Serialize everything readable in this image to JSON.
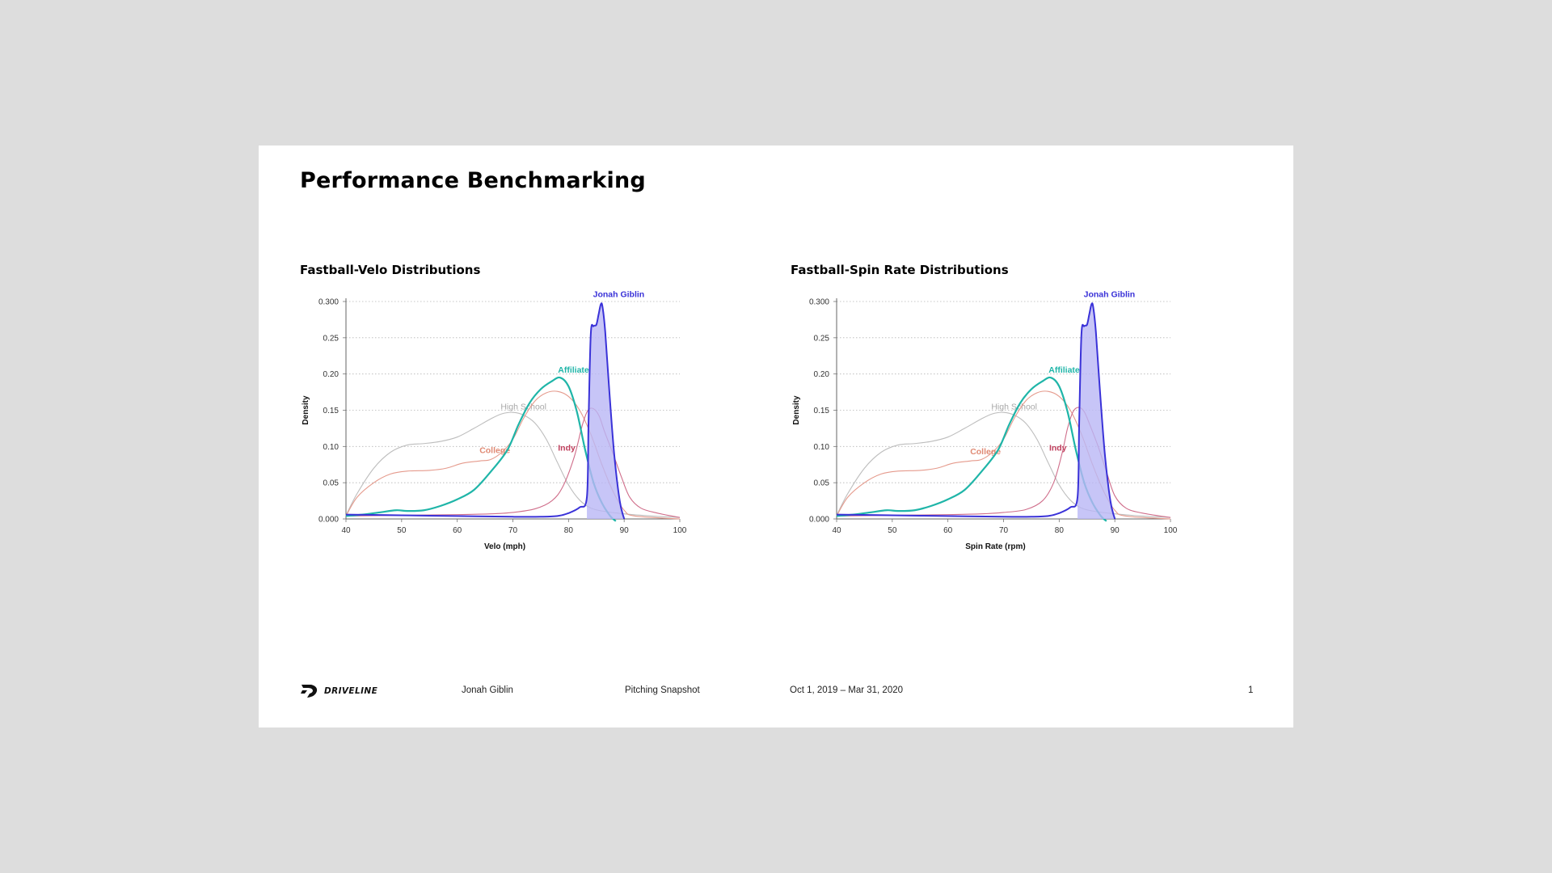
{
  "slide": {
    "title": "Performance Benchmarking",
    "footer": {
      "brand": "DRIVELINE",
      "player": "Jonah Giblin",
      "report": "Pitching Snapshot",
      "date_range": "Oct 1, 2019 – Mar 31, 2020",
      "page": "1"
    }
  },
  "colors": {
    "high_school": "#bdbdbd",
    "college": "#e59a8c",
    "affiliate": "#1fb5a8",
    "indy": "#cf6d8a",
    "player_line": "#3a32d8",
    "player_fill": "#b9b6f5",
    "indy_label": "#c0405e",
    "college_label": "#e08a74",
    "hs_label": "#a8a8a8"
  },
  "chart_data": [
    {
      "type": "line",
      "title": "Fastball-Velo Distributions",
      "xlabel": "Velo (mph)",
      "ylabel": "Density",
      "xlim": [
        40,
        100
      ],
      "ylim": [
        0,
        0.3
      ],
      "xticks": [
        "40",
        "50",
        "60",
        "70",
        "80",
        "90",
        "100"
      ],
      "yticks": [
        "0.000",
        "0.05",
        "0.10",
        "0.15",
        "0.20",
        "0.25",
        "0.300"
      ],
      "grid": "horizontal-dotted",
      "series": [
        {
          "name": "High School",
          "label_at": [
            67.8,
            0.151
          ],
          "points": [
            [
              40,
              0.005
            ],
            [
              42,
              0.035
            ],
            [
              45,
              0.07
            ],
            [
              48,
              0.092
            ],
            [
              51,
              0.102
            ],
            [
              54,
              0.104
            ],
            [
              57,
              0.107
            ],
            [
              60,
              0.113
            ],
            [
              63,
              0.125
            ],
            [
              66,
              0.138
            ],
            [
              68,
              0.145
            ],
            [
              70,
              0.147
            ],
            [
              72,
              0.143
            ],
            [
              74,
              0.132
            ],
            [
              76,
              0.11
            ],
            [
              78,
              0.078
            ],
            [
              80,
              0.047
            ],
            [
              82,
              0.026
            ],
            [
              84,
              0.015
            ],
            [
              86,
              0.011
            ],
            [
              90,
              0.007
            ],
            [
              95,
              0.004
            ],
            [
              100,
              0.002
            ]
          ]
        },
        {
          "name": "College",
          "label_at": [
            64.0,
            0.091
          ],
          "points": [
            [
              40,
              0.004
            ],
            [
              42,
              0.03
            ],
            [
              45,
              0.05
            ],
            [
              48,
              0.062
            ],
            [
              51,
              0.066
            ],
            [
              55,
              0.067
            ],
            [
              58,
              0.07
            ],
            [
              61,
              0.077
            ],
            [
              64,
              0.08
            ],
            [
              66,
              0.082
            ],
            [
              68,
              0.092
            ],
            [
              70,
              0.11
            ],
            [
              72,
              0.14
            ],
            [
              74,
              0.163
            ],
            [
              76,
              0.174
            ],
            [
              78,
              0.176
            ],
            [
              80,
              0.169
            ],
            [
              82,
              0.15
            ],
            [
              84,
              0.117
            ],
            [
              86,
              0.075
            ],
            [
              88,
              0.038
            ],
            [
              90,
              0.012
            ],
            [
              92,
              0.004
            ],
            [
              100,
              0.0
            ]
          ]
        },
        {
          "name": "Affiliate",
          "label_at": [
            78.1,
            0.202
          ],
          "points": [
            [
              40,
              0.004
            ],
            [
              43,
              0.006
            ],
            [
              46,
              0.009
            ],
            [
              49,
              0.012
            ],
            [
              51,
              0.011
            ],
            [
              54,
              0.012
            ],
            [
              57,
              0.018
            ],
            [
              60,
              0.027
            ],
            [
              63,
              0.04
            ],
            [
              66,
              0.065
            ],
            [
              69,
              0.095
            ],
            [
              71,
              0.13
            ],
            [
              73,
              0.16
            ],
            [
              75,
              0.179
            ],
            [
              77,
              0.19
            ],
            [
              78.5,
              0.195
            ],
            [
              80,
              0.183
            ],
            [
              81.5,
              0.148
            ],
            [
              83,
              0.095
            ],
            [
              84.5,
              0.05
            ],
            [
              86,
              0.022
            ],
            [
              87.5,
              0.004
            ],
            [
              88.5,
              -0.003
            ]
          ]
        },
        {
          "name": "Indy",
          "label_at": [
            78.1,
            0.094
          ],
          "points": [
            [
              40,
              0.004
            ],
            [
              50,
              0.005
            ],
            [
              60,
              0.006
            ],
            [
              66,
              0.007
            ],
            [
              70,
              0.009
            ],
            [
              74,
              0.014
            ],
            [
              77,
              0.025
            ],
            [
              79,
              0.045
            ],
            [
              81,
              0.085
            ],
            [
              82.5,
              0.13
            ],
            [
              83.5,
              0.15
            ],
            [
              84.5,
              0.152
            ],
            [
              85.5,
              0.142
            ],
            [
              86.5,
              0.12
            ],
            [
              88,
              0.09
            ],
            [
              89.5,
              0.058
            ],
            [
              91,
              0.03
            ],
            [
              93,
              0.015
            ],
            [
              96,
              0.008
            ],
            [
              100,
              0.002
            ]
          ]
        },
        {
          "name": "Jonah Giblin",
          "label_at": [
            84.4,
            0.306
          ],
          "fill": true,
          "points": [
            [
              40,
              0.006
            ],
            [
              50,
              0.005
            ],
            [
              60,
              0.004
            ],
            [
              70,
              0.003
            ],
            [
              75,
              0.003
            ],
            [
              78,
              0.004
            ],
            [
              80,
              0.008
            ],
            [
              82,
              0.016
            ],
            [
              83.3,
              0.03
            ],
            [
              83.6,
              0.135
            ],
            [
              84.0,
              0.255
            ],
            [
              84.5,
              0.266
            ],
            [
              85.0,
              0.268
            ],
            [
              85.4,
              0.282
            ],
            [
              85.8,
              0.296
            ],
            [
              86.1,
              0.293
            ],
            [
              86.6,
              0.258
            ],
            [
              87.3,
              0.18
            ],
            [
              88.2,
              0.09
            ],
            [
              89.2,
              0.025
            ],
            [
              90.0,
              0.0
            ]
          ]
        }
      ]
    },
    {
      "type": "line",
      "title": "Fastball-Spin Rate Distributions",
      "xlabel": "Spin Rate (rpm)",
      "ylabel": "Density",
      "xlim": [
        40,
        100
      ],
      "ylim": [
        0,
        0.3
      ],
      "xticks": [
        "40",
        "50",
        "60",
        "70",
        "80",
        "90",
        "100"
      ],
      "yticks": [
        "0.000",
        "0.05",
        "0.10",
        "0.15",
        "0.20",
        "0.25",
        "0.300"
      ],
      "grid": "horizontal-dotted",
      "series": [
        {
          "name": "High School",
          "label_at": [
            67.8,
            0.151
          ],
          "points": [
            [
              40,
              0.005
            ],
            [
              42,
              0.035
            ],
            [
              45,
              0.07
            ],
            [
              48,
              0.092
            ],
            [
              51,
              0.102
            ],
            [
              54,
              0.104
            ],
            [
              57,
              0.107
            ],
            [
              60,
              0.113
            ],
            [
              63,
              0.125
            ],
            [
              66,
              0.138
            ],
            [
              68,
              0.145
            ],
            [
              70,
              0.147
            ],
            [
              72,
              0.143
            ],
            [
              74,
              0.132
            ],
            [
              76,
              0.11
            ],
            [
              78,
              0.078
            ],
            [
              80,
              0.047
            ],
            [
              82,
              0.026
            ],
            [
              84,
              0.015
            ],
            [
              86,
              0.011
            ],
            [
              90,
              0.007
            ],
            [
              95,
              0.004
            ],
            [
              100,
              0.002
            ]
          ]
        },
        {
          "name": "College",
          "label_at": [
            64.0,
            0.089
          ],
          "points": [
            [
              40,
              0.004
            ],
            [
              42,
              0.03
            ],
            [
              45,
              0.05
            ],
            [
              48,
              0.062
            ],
            [
              51,
              0.066
            ],
            [
              55,
              0.067
            ],
            [
              58,
              0.07
            ],
            [
              61,
              0.077
            ],
            [
              64,
              0.08
            ],
            [
              66,
              0.082
            ],
            [
              68,
              0.092
            ],
            [
              70,
              0.11
            ],
            [
              72,
              0.14
            ],
            [
              74,
              0.163
            ],
            [
              76,
              0.174
            ],
            [
              78,
              0.176
            ],
            [
              80,
              0.169
            ],
            [
              82,
              0.15
            ],
            [
              84,
              0.117
            ],
            [
              86,
              0.075
            ],
            [
              88,
              0.038
            ],
            [
              90,
              0.012
            ],
            [
              92,
              0.004
            ],
            [
              100,
              0.0
            ]
          ]
        },
        {
          "name": "Affiliate",
          "label_at": [
            78.1,
            0.202
          ],
          "points": [
            [
              40,
              0.004
            ],
            [
              43,
              0.006
            ],
            [
              46,
              0.009
            ],
            [
              49,
              0.012
            ],
            [
              51,
              0.011
            ],
            [
              54,
              0.012
            ],
            [
              57,
              0.018
            ],
            [
              60,
              0.027
            ],
            [
              63,
              0.04
            ],
            [
              66,
              0.065
            ],
            [
              69,
              0.095
            ],
            [
              71,
              0.13
            ],
            [
              73,
              0.16
            ],
            [
              75,
              0.179
            ],
            [
              77,
              0.19
            ],
            [
              78.5,
              0.195
            ],
            [
              80,
              0.183
            ],
            [
              81.5,
              0.148
            ],
            [
              83,
              0.095
            ],
            [
              84.5,
              0.05
            ],
            [
              86,
              0.022
            ],
            [
              87.5,
              0.004
            ],
            [
              88.5,
              -0.003
            ]
          ]
        },
        {
          "name": "Indy",
          "label_at": [
            78.2,
            0.094
          ],
          "points": [
            [
              40,
              0.004
            ],
            [
              50,
              0.005
            ],
            [
              60,
              0.006
            ],
            [
              66,
              0.007
            ],
            [
              70,
              0.009
            ],
            [
              74,
              0.013
            ],
            [
              77,
              0.025
            ],
            [
              79,
              0.05
            ],
            [
              80.5,
              0.09
            ],
            [
              81.5,
              0.125
            ],
            [
              82.5,
              0.148
            ],
            [
              83.5,
              0.154
            ],
            [
              84.5,
              0.148
            ],
            [
              85.5,
              0.13
            ],
            [
              87,
              0.1
            ],
            [
              88.5,
              0.065
            ],
            [
              90,
              0.032
            ],
            [
              92,
              0.015
            ],
            [
              95,
              0.008
            ],
            [
              100,
              0.002
            ]
          ]
        },
        {
          "name": "Jonah Giblin",
          "label_at": [
            84.4,
            0.306
          ],
          "fill": true,
          "points": [
            [
              40,
              0.006
            ],
            [
              50,
              0.005
            ],
            [
              60,
              0.004
            ],
            [
              70,
              0.003
            ],
            [
              75,
              0.003
            ],
            [
              78,
              0.004
            ],
            [
              80,
              0.008
            ],
            [
              82,
              0.016
            ],
            [
              83.3,
              0.03
            ],
            [
              83.6,
              0.135
            ],
            [
              84.0,
              0.255
            ],
            [
              84.5,
              0.266
            ],
            [
              85.0,
              0.268
            ],
            [
              85.4,
              0.282
            ],
            [
              85.8,
              0.296
            ],
            [
              86.1,
              0.293
            ],
            [
              86.6,
              0.258
            ],
            [
              87.3,
              0.18
            ],
            [
              88.2,
              0.09
            ],
            [
              89.2,
              0.025
            ],
            [
              90.0,
              0.0
            ]
          ]
        }
      ]
    }
  ]
}
